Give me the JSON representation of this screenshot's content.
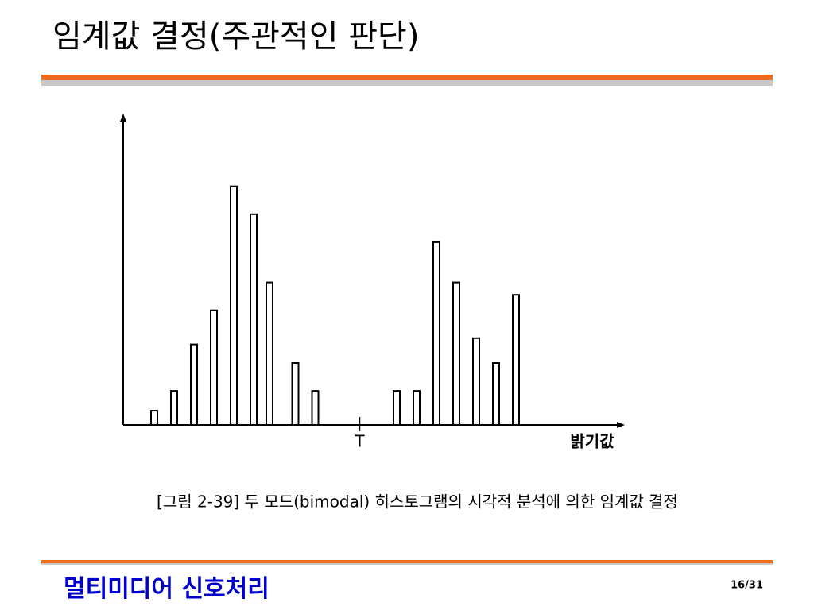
{
  "header": {
    "title": "임계값 결정(주관적인 판단)"
  },
  "chart_data": {
    "type": "bar",
    "x": [
      1.4,
      2.4,
      3.4,
      4.4,
      5.4,
      6.4,
      7.2,
      8.5,
      9.5,
      13.6,
      14.6,
      15.6,
      16.6,
      17.6,
      18.6,
      19.6
    ],
    "values": [
      4.6,
      11,
      26,
      37,
      77,
      68,
      46,
      20,
      11,
      11,
      11,
      59,
      46,
      28,
      20,
      42
    ],
    "xlim": [
      0,
      25
    ],
    "ylim": [
      0,
      100
    ],
    "x_label": "밝기값",
    "annotation": {
      "text": "T",
      "x": 11.9
    },
    "color": "#ffffff"
  },
  "caption": "[그림 2-39] 두 모드(bimodal) 히스토그램의 시각적 분석에 의한 임계값 결정",
  "footer": {
    "course": "멀티미디어 신호처리",
    "page": "16/31"
  }
}
